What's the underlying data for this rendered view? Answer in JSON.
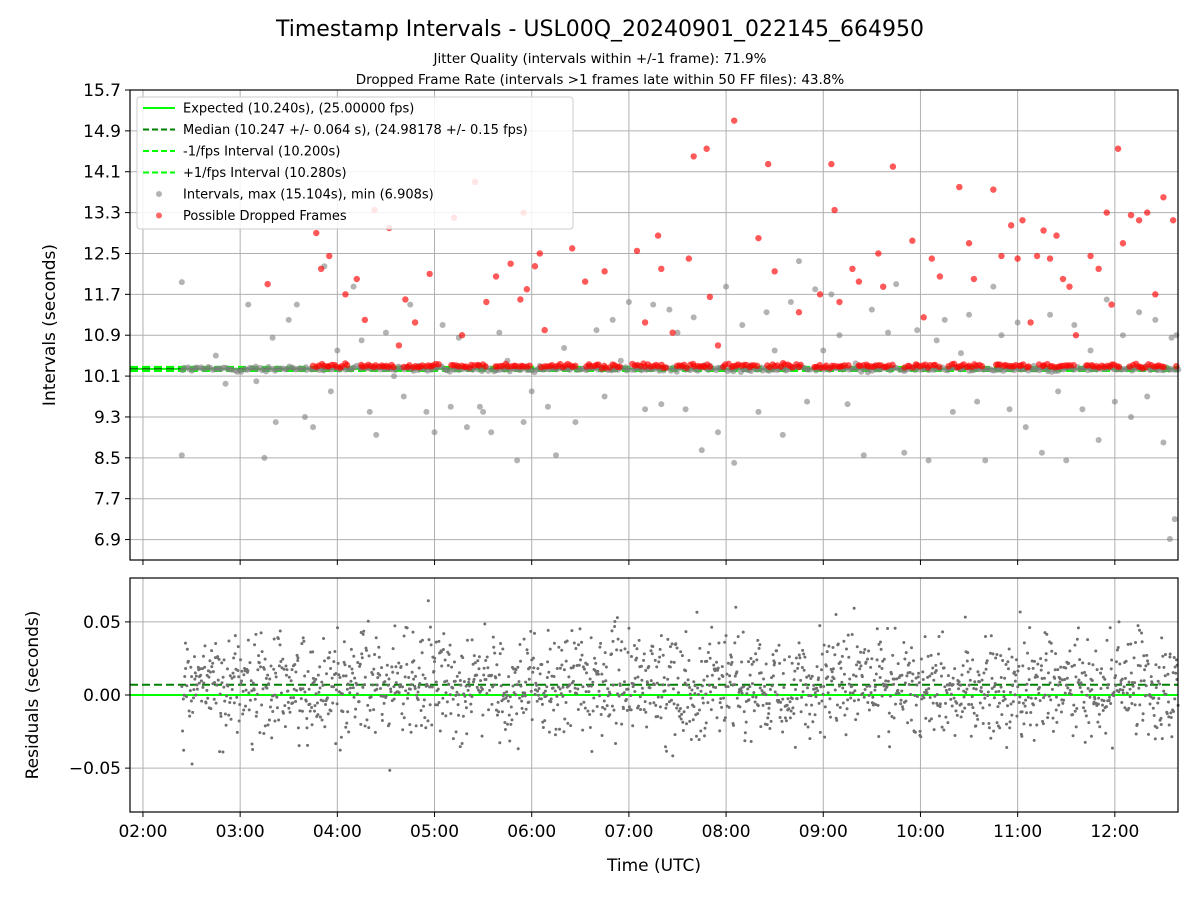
{
  "title": "Timestamp Intervals - USL00Q_20240901_022145_664950",
  "subtitle_1": "Jitter Quality (intervals within +/-1 frame): 71.9%",
  "subtitle_2": "Dropped Frame Rate (intervals >1 frames late within 50 FF files): 43.8%",
  "colors": {
    "expected": "#00ff00",
    "median": "#008000",
    "intervals": "#808080",
    "dropped": "#ff0000",
    "residuals": "#707070",
    "grid": "#b0b0b0"
  },
  "chart_data": [
    {
      "type": "scatter",
      "panel": "top",
      "xlabel": "",
      "ylabel": "Intervals (seconds)",
      "xlim": [
        "01:52",
        "12:39"
      ],
      "ylim": [
        6.5,
        15.7
      ],
      "yticks": [
        "6.9",
        "7.7",
        "8.5",
        "9.3",
        "10.1",
        "10.9",
        "11.7",
        "12.5",
        "13.3",
        "14.1",
        "14.9",
        "15.7"
      ],
      "grid": true,
      "legend_placement": "top-left",
      "legend": [
        "Expected (10.240s), (25.00000 fps)",
        "Median (10.247 +/- 0.064 s), (24.98178 +/- 0.15 fps)",
        "-1/fps Interval (10.200s)",
        "+1/fps Interval (10.280s)",
        "Intervals, max (15.104s), min (6.908s)",
        "Possible Dropped Frames"
      ],
      "lines": [
        {
          "name": "Expected",
          "y": 10.24,
          "style": "solid"
        },
        {
          "name": "Median",
          "y": 10.247,
          "style": "dashed"
        },
        {
          "name": "-1/fps Interval",
          "y": 10.2,
          "style": "dashed"
        },
        {
          "name": "+1/fps Interval",
          "y": 10.28,
          "style": "dashed"
        }
      ],
      "series": [
        {
          "name": "Intervals",
          "band": {
            "x_start": "02:24",
            "x_end": "12:39",
            "y_center": 10.24,
            "spread": 0.05
          },
          "points": [
            [
              "02:24",
              11.94
            ],
            [
              "02:24",
              8.55
            ],
            [
              "02:45",
              10.5
            ],
            [
              "02:51",
              9.95
            ],
            [
              "03:05",
              11.5
            ],
            [
              "03:10",
              10.0
            ],
            [
              "03:15",
              8.5
            ],
            [
              "03:20",
              10.85
            ],
            [
              "03:22",
              9.2
            ],
            [
              "03:30",
              11.2
            ],
            [
              "03:35",
              11.5
            ],
            [
              "03:40",
              9.3
            ],
            [
              "03:45",
              9.1
            ],
            [
              "03:52",
              12.25
            ],
            [
              "03:56",
              9.8
            ],
            [
              "04:00",
              10.6
            ],
            [
              "04:10",
              11.85
            ],
            [
              "04:15",
              10.8
            ],
            [
              "04:20",
              9.4
            ],
            [
              "04:24",
              8.95
            ],
            [
              "04:30",
              10.95
            ],
            [
              "04:35",
              10.1
            ],
            [
              "04:41",
              9.7
            ],
            [
              "04:45",
              11.5
            ],
            [
              "04:50",
              10.3
            ],
            [
              "04:55",
              9.4
            ],
            [
              "05:00",
              9.0
            ],
            [
              "05:05",
              11.1
            ],
            [
              "05:10",
              9.5
            ],
            [
              "05:15",
              10.85
            ],
            [
              "05:20",
              9.1
            ],
            [
              "05:28",
              9.5
            ],
            [
              "05:30",
              9.4
            ],
            [
              "05:35",
              9.0
            ],
            [
              "05:40",
              10.95
            ],
            [
              "05:45",
              10.4
            ],
            [
              "05:51",
              8.45
            ],
            [
              "05:55",
              9.2
            ],
            [
              "06:00",
              9.8
            ],
            [
              "06:05",
              10.3
            ],
            [
              "06:10",
              9.5
            ],
            [
              "06:15",
              8.55
            ],
            [
              "06:20",
              10.65
            ],
            [
              "06:27",
              9.2
            ],
            [
              "06:35",
              10.3
            ],
            [
              "06:40",
              11.0
            ],
            [
              "06:45",
              9.7
            ],
            [
              "06:50",
              11.2
            ],
            [
              "06:55",
              10.4
            ],
            [
              "07:00",
              11.55
            ],
            [
              "07:05",
              10.3
            ],
            [
              "07:10",
              9.45
            ],
            [
              "07:15",
              11.5
            ],
            [
              "07:20",
              9.55
            ],
            [
              "07:25",
              11.4
            ],
            [
              "07:30",
              10.95
            ],
            [
              "07:35",
              9.45
            ],
            [
              "07:40",
              11.25
            ],
            [
              "07:45",
              8.65
            ],
            [
              "07:50",
              10.3
            ],
            [
              "07:55",
              9.0
            ],
            [
              "08:00",
              11.85
            ],
            [
              "08:05",
              8.4
            ],
            [
              "08:10",
              11.1
            ],
            [
              "08:15",
              10.3
            ],
            [
              "08:20",
              9.4
            ],
            [
              "08:25",
              11.35
            ],
            [
              "08:30",
              10.6
            ],
            [
              "08:35",
              8.95
            ],
            [
              "08:40",
              11.55
            ],
            [
              "08:45",
              12.35
            ],
            [
              "08:50",
              9.6
            ],
            [
              "08:55",
              11.8
            ],
            [
              "09:00",
              10.6
            ],
            [
              "09:05",
              11.7
            ],
            [
              "09:10",
              10.9
            ],
            [
              "09:15",
              9.55
            ],
            [
              "09:20",
              10.35
            ],
            [
              "09:25",
              8.55
            ],
            [
              "09:30",
              11.4
            ],
            [
              "09:40",
              10.95
            ],
            [
              "09:45",
              11.9
            ],
            [
              "09:50",
              8.6
            ],
            [
              "09:58",
              11.0
            ],
            [
              "10:05",
              8.45
            ],
            [
              "10:10",
              10.8
            ],
            [
              "10:15",
              11.2
            ],
            [
              "10:20",
              9.4
            ],
            [
              "10:25",
              10.55
            ],
            [
              "10:30",
              11.3
            ],
            [
              "10:35",
              9.6
            ],
            [
              "10:40",
              8.45
            ],
            [
              "10:45",
              11.85
            ],
            [
              "10:50",
              10.9
            ],
            [
              "10:55",
              9.45
            ],
            [
              "11:00",
              11.15
            ],
            [
              "11:05",
              9.1
            ],
            [
              "11:10",
              10.3
            ],
            [
              "11:15",
              8.6
            ],
            [
              "11:20",
              11.3
            ],
            [
              "11:25",
              9.8
            ],
            [
              "11:30",
              8.45
            ],
            [
              "11:35",
              11.1
            ],
            [
              "11:40",
              9.45
            ],
            [
              "11:45",
              10.6
            ],
            [
              "11:50",
              8.85
            ],
            [
              "11:55",
              11.6
            ],
            [
              "12:00",
              9.6
            ],
            [
              "12:05",
              10.9
            ],
            [
              "12:10",
              9.3
            ],
            [
              "12:15",
              11.35
            ],
            [
              "12:20",
              9.7
            ],
            [
              "12:25",
              11.2
            ],
            [
              "12:30",
              8.8
            ],
            [
              "12:35",
              10.85
            ],
            [
              "12:37",
              7.3
            ],
            [
              "12:34",
              6.91
            ],
            [
              "12:38",
              10.9
            ]
          ]
        },
        {
          "name": "Possible Dropped Frames",
          "band": {
            "x_start": "03:45",
            "x_end": "12:39",
            "y_center": 10.3
          },
          "points": [
            [
              "03:17",
              11.9
            ],
            [
              "03:47",
              12.9
            ],
            [
              "03:50",
              12.2
            ],
            [
              "03:55",
              12.45
            ],
            [
              "04:05",
              11.7
            ],
            [
              "04:12",
              12.0
            ],
            [
              "04:17",
              11.2
            ],
            [
              "04:23",
              13.35
            ],
            [
              "04:32",
              13.0
            ],
            [
              "04:38",
              10.7
            ],
            [
              "04:42",
              11.6
            ],
            [
              "04:48",
              11.15
            ],
            [
              "04:57",
              12.1
            ],
            [
              "05:12",
              13.2
            ],
            [
              "05:17",
              10.9
            ],
            [
              "05:25",
              13.9
            ],
            [
              "05:32",
              11.55
            ],
            [
              "05:38",
              12.05
            ],
            [
              "05:47",
              12.3
            ],
            [
              "05:53",
              11.6
            ],
            [
              "05:55",
              13.3
            ],
            [
              "05:57",
              11.8
            ],
            [
              "06:02",
              12.25
            ],
            [
              "06:05",
              12.5
            ],
            [
              "06:08",
              11.0
            ],
            [
              "06:25",
              12.6
            ],
            [
              "06:33",
              11.95
            ],
            [
              "06:45",
              12.15
            ],
            [
              "07:05",
              12.55
            ],
            [
              "07:10",
              11.15
            ],
            [
              "07:18",
              12.85
            ],
            [
              "07:20",
              12.2
            ],
            [
              "07:27",
              10.95
            ],
            [
              "07:37",
              12.4
            ],
            [
              "07:40",
              14.4
            ],
            [
              "07:48",
              14.55
            ],
            [
              "07:50",
              11.65
            ],
            [
              "07:55",
              10.7
            ],
            [
              "08:05",
              15.1
            ],
            [
              "08:20",
              12.8
            ],
            [
              "08:26",
              14.25
            ],
            [
              "08:30",
              12.15
            ],
            [
              "08:45",
              11.35
            ],
            [
              "08:58",
              11.7
            ],
            [
              "09:05",
              14.25
            ],
            [
              "09:07",
              13.35
            ],
            [
              "09:10",
              11.55
            ],
            [
              "09:18",
              12.2
            ],
            [
              "09:22",
              11.95
            ],
            [
              "09:34",
              12.5
            ],
            [
              "09:37",
              11.85
            ],
            [
              "09:43",
              14.2
            ],
            [
              "09:55",
              12.75
            ],
            [
              "10:02",
              11.25
            ],
            [
              "10:07",
              12.4
            ],
            [
              "10:12",
              12.05
            ],
            [
              "10:24",
              13.8
            ],
            [
              "10:30",
              12.7
            ],
            [
              "10:33",
              12.0
            ],
            [
              "10:45",
              13.75
            ],
            [
              "10:50",
              12.45
            ],
            [
              "10:56",
              13.05
            ],
            [
              "11:00",
              12.4
            ],
            [
              "11:03",
              13.15
            ],
            [
              "11:08",
              11.15
            ],
            [
              "11:12",
              12.45
            ],
            [
              "11:16",
              12.95
            ],
            [
              "11:20",
              12.4
            ],
            [
              "11:24",
              12.85
            ],
            [
              "11:28",
              12.0
            ],
            [
              "11:32",
              11.85
            ],
            [
              "11:36",
              10.9
            ],
            [
              "11:45",
              12.45
            ],
            [
              "11:50",
              12.2
            ],
            [
              "11:55",
              13.3
            ],
            [
              "11:58",
              11.5
            ],
            [
              "12:02",
              14.55
            ],
            [
              "12:05",
              12.7
            ],
            [
              "12:10",
              13.25
            ],
            [
              "12:15",
              13.15
            ],
            [
              "12:20",
              13.3
            ],
            [
              "12:25",
              11.7
            ],
            [
              "12:30",
              13.6
            ],
            [
              "12:36",
              13.15
            ]
          ]
        }
      ]
    },
    {
      "type": "scatter",
      "panel": "bottom",
      "xlabel": "Time (UTC)",
      "ylabel": "Residuals (seconds)",
      "xlim": [
        "01:52",
        "12:39"
      ],
      "ylim": [
        -0.08,
        0.08
      ],
      "yticks": [
        "−0.05",
        "0.00",
        "0.05"
      ],
      "xticks": [
        "02:00",
        "03:00",
        "04:00",
        "05:00",
        "06:00",
        "07:00",
        "08:00",
        "09:00",
        "10:00",
        "11:00",
        "12:00"
      ],
      "grid": true,
      "lines": [
        {
          "name": "Expected",
          "y": 0.0,
          "style": "solid"
        },
        {
          "name": "Median",
          "y": 0.007,
          "style": "dashed"
        }
      ],
      "series": [
        {
          "name": "Residuals",
          "band": {
            "x_start": "02:24",
            "x_end": "12:39",
            "y_center": 0.007,
            "spread": 0.025
          }
        }
      ]
    }
  ]
}
